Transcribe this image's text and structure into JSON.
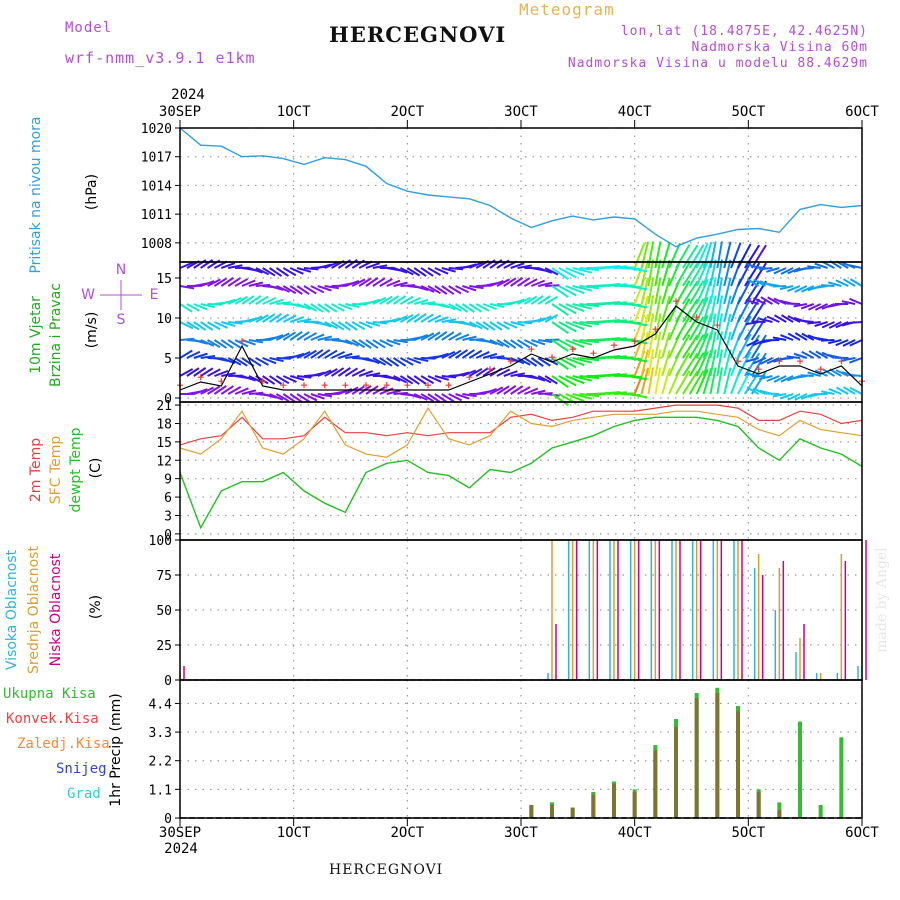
{
  "header": {
    "model_label": "Model",
    "model_name": "wrf-nmm_v3.9.1 e1km",
    "meteogram_label": "Meteogram",
    "station_title": "HERCEGNOVI",
    "lonlat": "lon,lat (18.4875E, 42.4625N)",
    "elevation": "Nadmorska Visina 60m",
    "model_elevation": "Nadmorska Visina u modelu 88.4629m"
  },
  "footer": {
    "station": "HERCEGNOVI",
    "watermark": "made by Angel"
  },
  "colors": {
    "pressure": "#2ea0e0",
    "t2m": "#e84040",
    "sfc": "#e0a030",
    "dewpt": "#22c022",
    "high_cloud": "#2bb5d8",
    "mid_cloud": "#d8a030",
    "low_cloud": "#cc0088",
    "total_precip": "#33bb33",
    "conv_precip": "#ee4444",
    "frz_precip": "#ff8833",
    "snow": "#3344dd",
    "graupel": "#33cccc",
    "wind_speed": "#000000",
    "gust": "#ff3333"
  },
  "axis_labels": {
    "pressure": "Pritisak na nivou mora",
    "pressure_unit": "(hPa)",
    "wind_a": "10m Vjetar",
    "wind_b": "Brzina i Pravac",
    "wind_unit": "(m/s)",
    "compass_n": "N",
    "compass_s": "S",
    "compass_w": "W",
    "compass_e": "E",
    "temp_a": "2m Temp",
    "temp_b": "SFC Temp",
    "temp_c": "dewpt Temp",
    "temp_unit": "(C)",
    "cloud_a": "Visoka Oblacnost",
    "cloud_b": "Srednja Oblacnost",
    "cloud_c": "Niska Oblacnost",
    "cloud_unit": "(%)",
    "precip_unit": "1hr Precip (mm)"
  },
  "legend_precip": [
    "Ukupna Kisa",
    "Konvek.Kisa",
    "Zaledj.Kisa",
    "Snijeg",
    "Grad"
  ],
  "chart_data": [
    {
      "type": "line",
      "panel": "pressure",
      "x_tick_labels": [
        "30SEP",
        "1OCT",
        "2OCT",
        "3OCT",
        "4OCT",
        "5OCT",
        "6OCT"
      ],
      "x_year": "2024",
      "ylim": [
        1006,
        1020
      ],
      "yticks": [
        1008,
        1011,
        1014,
        1017,
        1020
      ],
      "series": [
        {
          "values": [
            1020.0,
            1018.2,
            1018.1,
            1017.0,
            1017.1,
            1016.8,
            1016.2,
            1016.9,
            1016.7,
            1016.0,
            1014.2,
            1013.4,
            1013.0,
            1012.8,
            1012.6,
            1011.9,
            1010.6,
            1009.6,
            1010.3,
            1010.8,
            1010.4,
            1010.7,
            1010.5,
            1008.9,
            1007.6,
            1008.5,
            1008.9,
            1009.4,
            1009.5,
            1009.1,
            1011.5,
            1012.0,
            1011.7,
            1011.9
          ]
        }
      ]
    },
    {
      "type": "line",
      "panel": "wind",
      "ylim": [
        -0.5,
        17
      ],
      "yticks": [
        0,
        5,
        10,
        15
      ],
      "series": [
        {
          "values": [
            1.0,
            2.0,
            1.5,
            6.5,
            1.5,
            1.0,
            1.0,
            1.0,
            1.0,
            1.0,
            1.0,
            1.0,
            1.0,
            1.0,
            2.0,
            3.0,
            4.0,
            5.5,
            4.5,
            5.5,
            5.0,
            6.0,
            6.5,
            8.0,
            11.5,
            9.5,
            8.5,
            4.0,
            3.0,
            4.0,
            4.0,
            3.0,
            4.0,
            1.5
          ]
        }
      ]
    },
    {
      "type": "line",
      "panel": "temperature",
      "ylim": [
        -1,
        21.5
      ],
      "yticks": [
        0,
        3,
        6,
        9,
        12,
        15,
        18,
        21
      ],
      "series": [
        {
          "values": [
            14.5,
            15.5,
            16.0,
            19.0,
            15.5,
            15.5,
            16.0,
            19.0,
            16.5,
            16.5,
            16.0,
            16.5,
            16.0,
            16.5,
            16.5,
            16.5,
            19.0,
            19.5,
            18.5,
            19.0,
            20.0,
            20.0,
            20.0,
            20.5,
            21.0,
            21.0,
            21.0,
            20.5,
            18.5,
            18.5,
            20.0,
            19.5,
            18.0,
            18.5
          ]
        },
        {
          "values": [
            14.0,
            13.0,
            15.5,
            20.0,
            14.0,
            13.0,
            15.5,
            20.0,
            14.5,
            13.0,
            12.5,
            14.5,
            20.5,
            15.5,
            14.5,
            16.0,
            20.0,
            18.0,
            17.5,
            18.5,
            19.0,
            19.5,
            19.5,
            19.5,
            20.0,
            20.0,
            19.5,
            19.0,
            17.0,
            16.0,
            18.5,
            17.0,
            16.5,
            16.0
          ]
        },
        {
          "values": [
            10.0,
            1.0,
            7.0,
            8.5,
            8.5,
            10.0,
            7.0,
            5.0,
            3.5,
            10.0,
            11.5,
            12.0,
            10.0,
            9.5,
            7.5,
            10.5,
            10.0,
            11.5,
            14.0,
            15.0,
            16.0,
            17.5,
            18.5,
            19.0,
            19.0,
            19.0,
            18.5,
            17.5,
            14.0,
            12.0,
            15.5,
            14.0,
            13.0,
            11.0
          ]
        }
      ]
    },
    {
      "type": "bar",
      "panel": "clouds",
      "ylim": [
        0,
        100
      ],
      "yticks": [
        0,
        25,
        50,
        75,
        100
      ],
      "series": [
        {
          "values": [
            0,
            0,
            0,
            0,
            0,
            0,
            0,
            0,
            0,
            0,
            0,
            0,
            0,
            0,
            0,
            0,
            0,
            0,
            5,
            100,
            100,
            100,
            100,
            100,
            100,
            100,
            100,
            100,
            80,
            50,
            20,
            5,
            5,
            10
          ]
        },
        {
          "values": [
            5,
            0,
            0,
            0,
            0,
            0,
            0,
            0,
            0,
            0,
            0,
            0,
            0,
            0,
            0,
            0,
            0,
            0,
            100,
            100,
            100,
            100,
            100,
            100,
            100,
            100,
            100,
            100,
            90,
            80,
            30,
            5,
            90,
            100
          ]
        },
        {
          "values": [
            10,
            0,
            0,
            0,
            0,
            0,
            0,
            0,
            0,
            0,
            0,
            0,
            0,
            0,
            0,
            0,
            0,
            0,
            40,
            100,
            100,
            100,
            100,
            100,
            100,
            100,
            100,
            100,
            75,
            85,
            40,
            0,
            85,
            100
          ]
        }
      ]
    },
    {
      "type": "bar",
      "panel": "precipitation",
      "ylim": [
        0,
        5.3
      ],
      "yticks": [
        0,
        1.1,
        2.2,
        3.3,
        4.4
      ],
      "series": [
        {
          "values": [
            0,
            0,
            0,
            0,
            0,
            0,
            0,
            0,
            0,
            0,
            0,
            0,
            0,
            0,
            0,
            0,
            0,
            0.5,
            0.6,
            0.4,
            1.0,
            1.4,
            1.1,
            2.8,
            3.8,
            4.8,
            5.0,
            4.3,
            1.1,
            0.6,
            3.7,
            0.5,
            3.1,
            0.0
          ]
        },
        {
          "values": [
            0,
            0,
            0,
            0,
            0,
            0,
            0,
            0,
            0,
            0,
            0,
            0,
            0,
            0,
            0,
            0,
            0,
            0.5,
            0.5,
            0.4,
            0.9,
            1.3,
            1.0,
            2.6,
            3.5,
            4.6,
            4.8,
            4.1,
            1.0,
            0.3,
            0.0,
            0.0,
            0.0,
            0.0
          ]
        }
      ]
    }
  ]
}
